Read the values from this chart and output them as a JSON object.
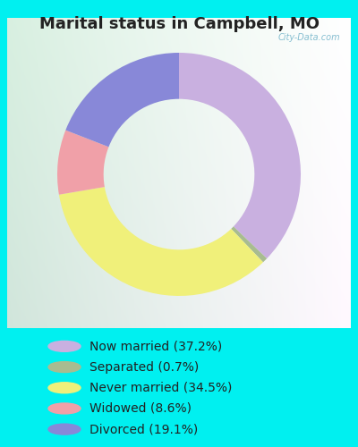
{
  "title": "Marital status in Campbell, MO",
  "slices": [
    {
      "label": "Now married (37.2%)",
      "value": 37.2,
      "color": "#c9b0e0"
    },
    {
      "label": "Separated (0.7%)",
      "value": 0.7,
      "color": "#a8bc90"
    },
    {
      "label": "Never married (34.5%)",
      "value": 34.5,
      "color": "#f0f07a"
    },
    {
      "label": "Widowed (8.6%)",
      "value": 8.6,
      "color": "#f0a0a8"
    },
    {
      "label": "Divorced (19.1%)",
      "value": 19.1,
      "color": "#8888d8"
    }
  ],
  "bg_color": "#00f0f0",
  "title_fontsize": 13,
  "legend_fontsize": 10,
  "watermark": "City-Data.com"
}
